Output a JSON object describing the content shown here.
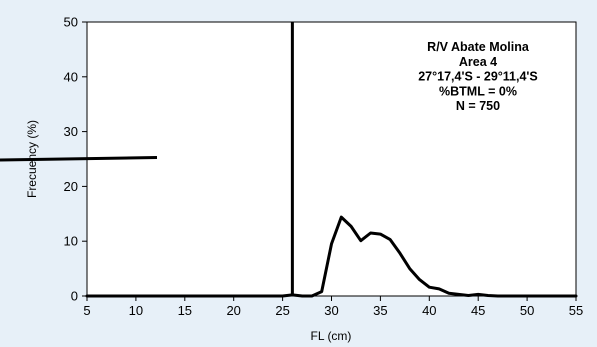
{
  "chart_data": {
    "type": "line",
    "title": "",
    "xlabel": "FL (cm)",
    "ylabel": "Frecuency (%)",
    "xlim": [
      5,
      55
    ],
    "ylim": [
      0,
      50
    ],
    "xticks": [
      5,
      10,
      15,
      20,
      25,
      30,
      35,
      40,
      45,
      50,
      55
    ],
    "yticks": [
      0,
      10,
      20,
      30,
      40,
      50
    ],
    "grid": false,
    "legend": "none",
    "annotations": [
      "R/V Abate Molina",
      "Area 4",
      "27°17,4'S - 29°11,4'S",
      "%BTML = 0%",
      "N = 750"
    ],
    "vertical_line_x": 26,
    "series": [
      {
        "color": "#000000",
        "x": [
          5,
          10,
          15,
          20,
          25,
          26,
          27,
          28,
          29,
          30,
          31,
          32,
          33,
          34,
          35,
          36,
          37,
          38,
          39,
          40,
          41,
          42,
          43,
          44,
          45,
          46,
          47,
          48,
          50,
          55
        ],
        "y": [
          0,
          0,
          0,
          0,
          0,
          0.2,
          0,
          0,
          0.8,
          9.5,
          14.4,
          12.7,
          10.1,
          11.5,
          11.3,
          10.3,
          7.8,
          5.0,
          3.0,
          1.6,
          1.3,
          0.5,
          0.3,
          0.1,
          0.3,
          0.1,
          0,
          0,
          0,
          0
        ]
      }
    ]
  }
}
